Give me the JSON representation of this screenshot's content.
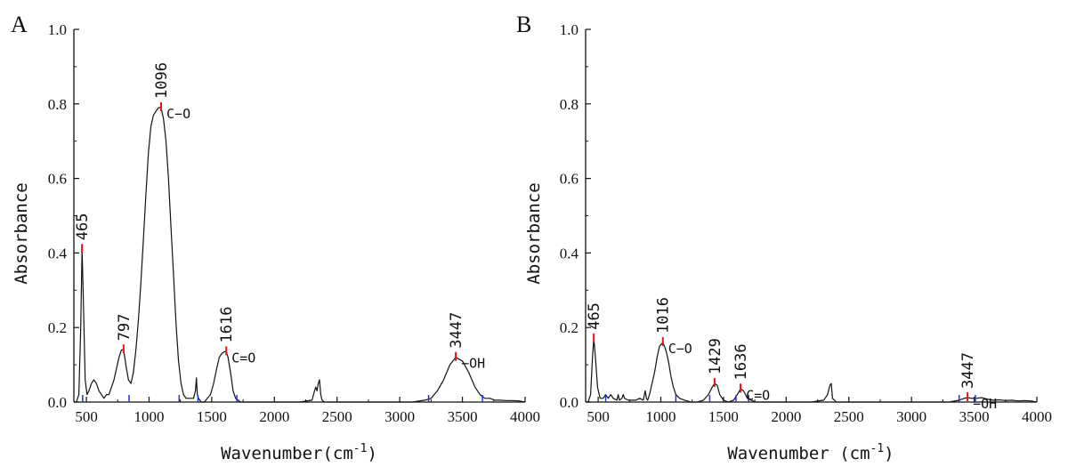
{
  "chart_data": [
    {
      "type": "line",
      "panel": "A",
      "xlabel": "Wavenumber(cm",
      "xlabel_sup": "-1",
      "xlabel_close": ")",
      "ylabel": "Absorbance",
      "xlim": [
        400,
        4000
      ],
      "ylim": [
        0,
        1.0
      ],
      "x_ticks": [
        500,
        1000,
        1500,
        2000,
        2500,
        3000,
        3500,
        4000
      ],
      "x_tick_labels": [
        "500",
        "1000",
        "1500",
        "2000",
        "2500",
        "3000",
        "3500",
        "4000"
      ],
      "y_ticks": [
        0,
        0.2,
        0.4,
        0.6,
        0.8,
        1.0
      ],
      "y_tick_labels": [
        "0.0",
        "0.2",
        "0.4",
        "0.6",
        "0.8",
        "1.0"
      ],
      "series": [
        {
          "x": [
            400,
            420,
            440,
            455,
            465,
            475,
            490,
            505,
            520,
            540,
            560,
            580,
            600,
            620,
            640,
            660,
            680,
            700,
            720,
            740,
            760,
            780,
            797,
            815,
            835,
            855,
            875,
            895,
            915,
            935,
            955,
            975,
            995,
            1015,
            1035,
            1055,
            1075,
            1096,
            1115,
            1135,
            1155,
            1175,
            1195,
            1215,
            1235,
            1255,
            1275,
            1295,
            1315,
            1335,
            1355,
            1370,
            1378,
            1385,
            1395,
            1415,
            1440,
            1465,
            1490,
            1515,
            1540,
            1560,
            1580,
            1600,
            1616,
            1630,
            1650,
            1670,
            1690,
            1710,
            1730,
            1760,
            1800,
            1900,
            2000,
            2100,
            2200,
            2300,
            2320,
            2330,
            2340,
            2350,
            2360,
            2370,
            2380,
            2400,
            2500,
            2600,
            2700,
            2800,
            2900,
            3000,
            3100,
            3200,
            3250,
            3300,
            3350,
            3400,
            3447,
            3500,
            3550,
            3600,
            3640,
            3680,
            3720,
            3760,
            3800,
            3850,
            3900,
            3950,
            4000
          ],
          "y": [
            0.0,
            0.0,
            0.02,
            0.2,
            0.41,
            0.28,
            0.06,
            0.02,
            0.03,
            0.05,
            0.06,
            0.05,
            0.03,
            0.02,
            0.01,
            0.02,
            0.02,
            0.04,
            0.06,
            0.09,
            0.12,
            0.14,
            0.14,
            0.1,
            0.06,
            0.05,
            0.08,
            0.14,
            0.22,
            0.32,
            0.44,
            0.56,
            0.67,
            0.74,
            0.77,
            0.78,
            0.79,
            0.79,
            0.76,
            0.7,
            0.6,
            0.47,
            0.34,
            0.21,
            0.11,
            0.05,
            0.02,
            0.01,
            0.01,
            0.01,
            0.01,
            0.03,
            0.065,
            0.02,
            0.01,
            0.0,
            0.0,
            0.01,
            0.02,
            0.05,
            0.09,
            0.12,
            0.13,
            0.135,
            0.135,
            0.12,
            0.08,
            0.03,
            0.01,
            0.005,
            0.0,
            0.0,
            0.0,
            0.0,
            0.0,
            0.0,
            0.0,
            0.005,
            0.03,
            0.04,
            0.03,
            0.05,
            0.06,
            0.02,
            0.005,
            0.0,
            0.0,
            0.0,
            0.0,
            0.0,
            0.0,
            0.0,
            0.0,
            0.005,
            0.01,
            0.03,
            0.06,
            0.1,
            0.12,
            0.11,
            0.08,
            0.04,
            0.02,
            0.01,
            0.01,
            0.005,
            0.005,
            0.004,
            0.004,
            0.003,
            0.0
          ]
        }
      ],
      "annotations": [
        {
          "x": 465,
          "y": 0.41,
          "label": "465"
        },
        {
          "x": 797,
          "y": 0.14,
          "label": "797"
        },
        {
          "x": 1096,
          "y": 0.79,
          "label": "1096",
          "group": "C−O"
        },
        {
          "x": 1616,
          "y": 0.135,
          "label": "1616",
          "group": "C=O"
        },
        {
          "x": 3447,
          "y": 0.12,
          "label": "3447",
          "group": "−OH"
        }
      ],
      "minor_marks": [
        470,
        840,
        1240,
        1390,
        1700,
        3230,
        3660
      ]
    },
    {
      "type": "line",
      "panel": "B",
      "xlabel": "Wavenumber (cm",
      "xlabel_sup": "-1",
      "xlabel_close": ")",
      "ylabel": "Absorbance",
      "xlim": [
        400,
        4000
      ],
      "ylim": [
        0,
        1.0
      ],
      "x_ticks": [
        500,
        1000,
        1500,
        2000,
        2500,
        3000,
        3500,
        4000
      ],
      "x_tick_labels": [
        "500",
        "1000",
        "1500",
        "2000",
        "2500",
        "3000",
        "3500",
        "4000"
      ],
      "y_ticks": [
        0,
        0.2,
        0.4,
        0.6,
        0.8,
        1.0
      ],
      "y_tick_labels": [
        "0.0",
        "0.2",
        "0.4",
        "0.6",
        "0.8",
        "1.0"
      ],
      "series": [
        {
          "x": [
            400,
            420,
            440,
            455,
            465,
            478,
            495,
            515,
            540,
            560,
            580,
            600,
            620,
            650,
            660,
            670,
            690,
            700,
            710,
            740,
            770,
            800,
            830,
            860,
            875,
            885,
            895,
            910,
            930,
            950,
            970,
            990,
            1016,
            1040,
            1060,
            1080,
            1100,
            1120,
            1150,
            1190,
            1240,
            1290,
            1340,
            1380,
            1410,
            1429,
            1450,
            1470,
            1500,
            1540,
            1580,
            1610,
            1636,
            1660,
            1690,
            1720,
            1760,
            1800,
            1900,
            2000,
            2100,
            2200,
            2300,
            2330,
            2345,
            2350,
            2360,
            2370,
            2400,
            2500,
            2700,
            2900,
            3100,
            3300,
            3380,
            3420,
            3447,
            3480,
            3520,
            3560,
            3600,
            3650,
            3700,
            3750,
            3800,
            3850,
            3900,
            3950,
            4000
          ],
          "y": [
            0.0,
            0.0,
            0.02,
            0.12,
            0.17,
            0.12,
            0.04,
            0.01,
            0.01,
            0.02,
            0.01,
            0.02,
            0.01,
            0.005,
            0.02,
            0.005,
            0.01,
            0.02,
            0.01,
            0.005,
            0.005,
            0.005,
            0.01,
            0.005,
            0.03,
            0.01,
            0.005,
            0.02,
            0.05,
            0.08,
            0.12,
            0.15,
            0.16,
            0.14,
            0.11,
            0.07,
            0.04,
            0.02,
            0.01,
            0.005,
            0.0,
            0.0,
            0.005,
            0.02,
            0.04,
            0.05,
            0.045,
            0.02,
            0.005,
            0.0,
            0.005,
            0.02,
            0.035,
            0.03,
            0.01,
            0.005,
            0.0,
            0.0,
            0.0,
            0.0,
            0.0,
            0.0,
            0.005,
            0.02,
            0.04,
            0.045,
            0.05,
            0.01,
            0.0,
            0.0,
            0.0,
            0.0,
            0.0,
            0.0,
            0.005,
            0.01,
            0.012,
            0.01,
            0.01,
            0.012,
            0.008,
            0.005,
            0.006,
            0.004,
            0.005,
            0.003,
            0.004,
            0.003,
            0.0
          ]
        }
      ],
      "annotations": [
        {
          "x": 465,
          "y": 0.17,
          "label": "465"
        },
        {
          "x": 1016,
          "y": 0.16,
          "label": "1016",
          "group": "C−O"
        },
        {
          "x": 1429,
          "y": 0.05,
          "label": "1429"
        },
        {
          "x": 1636,
          "y": 0.035,
          "label": "1636",
          "group": "C=O"
        },
        {
          "x": 3447,
          "y": 0.012,
          "label": "3447",
          "group": "−OH"
        }
      ],
      "minor_marks": [
        560,
        1120,
        1390,
        1600,
        1700,
        3380,
        3510
      ]
    }
  ],
  "colors": {
    "line": "#111111",
    "peak_mark": "#e0141e",
    "baseline_mark": "#2233cc",
    "axis": "#111111",
    "y_tick_label_color": "#111111",
    "ytick_label_accent": "#1a2a8c"
  }
}
